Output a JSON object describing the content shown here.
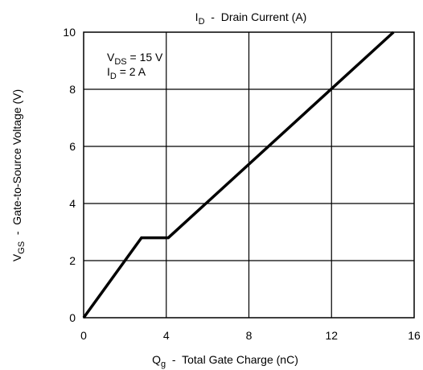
{
  "chart_data": {
    "type": "line",
    "title": "",
    "top_label": {
      "main": "I",
      "sub": "D",
      "rest": "  -  Drain Current (A)"
    },
    "xlabel": {
      "main": "Q",
      "sub": "g",
      "rest": "  -  Total Gate Charge (nC)"
    },
    "ylabel": {
      "main": "V",
      "sub": "GS",
      "rest": "  -  Gate-to-Source Voltage (V)"
    },
    "xlim": [
      0,
      16
    ],
    "ylim": [
      0,
      10
    ],
    "xticks": [
      0,
      4,
      8,
      12,
      16
    ],
    "yticks": [
      0,
      2,
      4,
      6,
      8,
      10
    ],
    "grid": true,
    "annotations": [
      {
        "main": "V",
        "sub": "DS",
        "rest": " = 15 V"
      },
      {
        "main": "I",
        "sub": "D",
        "rest": " = 2 A"
      }
    ],
    "series": [
      {
        "x": [
          0,
          2.8,
          4.1,
          15.0
        ],
        "y": [
          0,
          2.8,
          2.8,
          10.0
        ]
      }
    ],
    "line_color": "#000000"
  }
}
